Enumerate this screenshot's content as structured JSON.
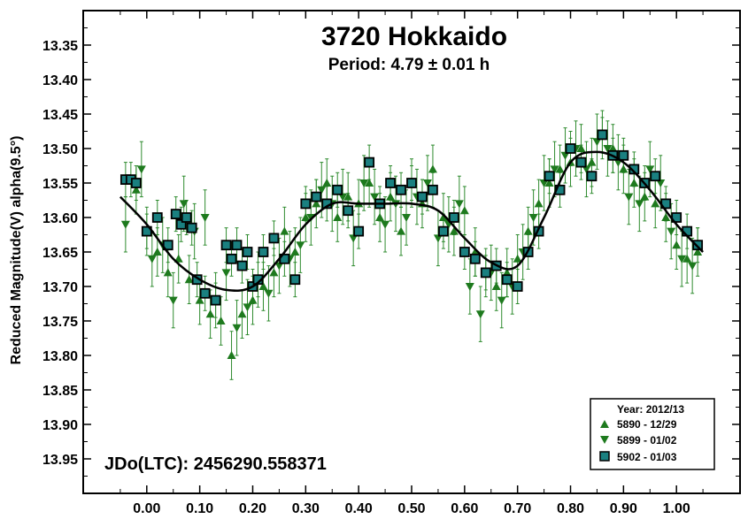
{
  "chart_data": {
    "type": "scatter",
    "title": "3720 Hokkaido",
    "subtitle": "Period: 4.79 ± 0.01 h",
    "xlabel": "",
    "ylabel": "Reduced Magnitude(V) alpha(9.5°)",
    "annotation": "JDo(LTC): 2456290.558371",
    "xlim": [
      -0.12,
      1.12
    ],
    "ylim": [
      14.0,
      13.3
    ],
    "x_ticks": [
      "0.00",
      "0.10",
      "0.20",
      "0.30",
      "0.40",
      "0.50",
      "0.60",
      "0.70",
      "0.80",
      "0.90",
      "1.00"
    ],
    "x_tick_values": [
      0.0,
      0.1,
      0.2,
      0.3,
      0.4,
      0.5,
      0.6,
      0.7,
      0.8,
      0.9,
      1.0
    ],
    "y_ticks": [
      "13.35",
      "13.40",
      "13.45",
      "13.50",
      "13.55",
      "13.60",
      "13.65",
      "13.70",
      "13.75",
      "13.80",
      "13.85",
      "13.90",
      "13.95"
    ],
    "y_tick_values": [
      13.35,
      13.4,
      13.45,
      13.5,
      13.55,
      13.6,
      13.65,
      13.7,
      13.75,
      13.8,
      13.85,
      13.9,
      13.95
    ],
    "grid": false,
    "legend": {
      "title": "Year: 2012/13",
      "placement": "bottom-right",
      "entries": [
        "5890 - 12/29",
        "5899 - 01/02",
        "5902 - 01/03"
      ]
    },
    "colors": {
      "series1": "#1e7a1e",
      "series2": "#1e7a1e",
      "series3_fill": "#1a8080",
      "series3_edge": "#000000",
      "errorbar": "#2e8b2e",
      "fit": "#000000"
    },
    "series": [
      {
        "name": "5890 - 12/29",
        "marker": "triangle-up",
        "x": [
          -0.02,
          0.0,
          0.02,
          0.04,
          0.06,
          0.08,
          0.1,
          0.12,
          0.14,
          0.16,
          0.18,
          0.2,
          0.22,
          0.24,
          0.26,
          0.28,
          0.3,
          0.32,
          0.34,
          0.36,
          0.38,
          0.4,
          0.42,
          0.44,
          0.46,
          0.48,
          0.5,
          0.52,
          0.54,
          0.56,
          0.58,
          0.6,
          0.62,
          0.64,
          0.66,
          0.68,
          0.7,
          0.72,
          0.74,
          0.76,
          0.78,
          0.8,
          0.82,
          0.84,
          0.86,
          0.88,
          0.9,
          0.92,
          0.94,
          0.96,
          0.98,
          1.0,
          1.02,
          1.04
        ],
        "y": [
          13.56,
          13.62,
          13.65,
          13.68,
          13.66,
          13.69,
          13.72,
          13.74,
          13.75,
          13.8,
          13.74,
          13.72,
          13.7,
          13.68,
          13.62,
          13.65,
          13.6,
          13.58,
          13.55,
          13.6,
          13.57,
          13.58,
          13.55,
          13.6,
          13.57,
          13.62,
          13.55,
          13.58,
          13.53,
          13.6,
          13.62,
          13.59,
          13.65,
          13.68,
          13.7,
          13.68,
          13.66,
          13.62,
          13.58,
          13.55,
          13.53,
          13.52,
          13.5,
          13.52,
          13.48,
          13.5,
          13.53,
          13.55,
          13.57,
          13.58,
          13.6,
          13.64,
          13.66,
          13.65
        ],
        "yerr": 0.035
      },
      {
        "name": "5899 - 01/02",
        "marker": "triangle-down",
        "x": [
          -0.04,
          -0.01,
          0.01,
          0.03,
          0.05,
          0.07,
          0.09,
          0.11,
          0.13,
          0.15,
          0.17,
          0.19,
          0.21,
          0.23,
          0.25,
          0.27,
          0.29,
          0.31,
          0.33,
          0.35,
          0.37,
          0.39,
          0.41,
          0.43,
          0.45,
          0.47,
          0.49,
          0.51,
          0.53,
          0.55,
          0.57,
          0.59,
          0.61,
          0.63,
          0.65,
          0.67,
          0.69,
          0.71,
          0.73,
          0.75,
          0.77,
          0.79,
          0.81,
          0.83,
          0.85,
          0.87,
          0.89,
          0.91,
          0.93,
          0.95,
          0.97,
          0.99,
          1.01,
          1.03
        ],
        "y": [
          13.61,
          13.53,
          13.66,
          13.64,
          13.72,
          13.58,
          13.62,
          13.6,
          13.72,
          13.68,
          13.76,
          13.73,
          13.69,
          13.71,
          13.67,
          13.66,
          13.64,
          13.6,
          13.56,
          13.58,
          13.57,
          13.63,
          13.55,
          13.57,
          13.61,
          13.58,
          13.6,
          13.57,
          13.55,
          13.63,
          13.61,
          13.58,
          13.7,
          13.74,
          13.68,
          13.72,
          13.7,
          13.65,
          13.6,
          13.55,
          13.53,
          13.51,
          13.5,
          13.53,
          13.49,
          13.5,
          13.52,
          13.57,
          13.58,
          13.53,
          13.55,
          13.62,
          13.66,
          13.67
        ],
        "yerr": 0.04
      },
      {
        "name": "5902 - 01/03",
        "marker": "square",
        "x": [
          -0.04,
          -0.03,
          -0.02,
          0.0,
          0.02,
          0.04,
          0.055,
          0.065,
          0.075,
          0.085,
          0.095,
          0.11,
          0.13,
          0.15,
          0.16,
          0.17,
          0.18,
          0.19,
          0.2,
          0.21,
          0.22,
          0.24,
          0.26,
          0.28,
          0.3,
          0.32,
          0.34,
          0.36,
          0.38,
          0.4,
          0.42,
          0.44,
          0.46,
          0.48,
          0.5,
          0.52,
          0.54,
          0.56,
          0.58,
          0.6,
          0.62,
          0.64,
          0.66,
          0.68,
          0.7,
          0.72,
          0.74,
          0.76,
          0.78,
          0.8,
          0.82,
          0.84,
          0.86,
          0.88,
          0.9,
          0.92,
          0.94,
          0.96,
          0.98,
          1.0,
          1.02,
          1.04
        ],
        "y": [
          13.545,
          13.545,
          13.55,
          13.62,
          13.6,
          13.64,
          13.595,
          13.61,
          13.6,
          13.615,
          13.69,
          13.71,
          13.72,
          13.64,
          13.66,
          13.64,
          13.67,
          13.65,
          13.7,
          13.69,
          13.65,
          13.63,
          13.66,
          13.69,
          13.58,
          13.57,
          13.58,
          13.56,
          13.59,
          13.62,
          13.52,
          13.58,
          13.55,
          13.56,
          13.55,
          13.57,
          13.56,
          13.62,
          13.6,
          13.65,
          13.66,
          13.68,
          13.67,
          13.69,
          13.7,
          13.65,
          13.62,
          13.54,
          13.56,
          13.5,
          13.52,
          13.54,
          13.48,
          13.51,
          13.51,
          13.53,
          13.55,
          13.54,
          13.58,
          13.6,
          13.62,
          13.64
        ],
        "yerr": 0.025
      }
    ],
    "fit": {
      "name": "",
      "x": [
        -0.05,
        0.0,
        0.05,
        0.1,
        0.15,
        0.2,
        0.25,
        0.3,
        0.35,
        0.4,
        0.45,
        0.5,
        0.55,
        0.6,
        0.65,
        0.7,
        0.75,
        0.8,
        0.85,
        0.9,
        0.95,
        1.0,
        1.05
      ],
      "y": [
        13.57,
        13.61,
        13.66,
        13.69,
        13.705,
        13.7,
        13.66,
        13.61,
        13.58,
        13.58,
        13.58,
        13.58,
        13.59,
        13.63,
        13.665,
        13.67,
        13.6,
        13.52,
        13.505,
        13.52,
        13.56,
        13.61,
        13.65
      ]
    }
  }
}
